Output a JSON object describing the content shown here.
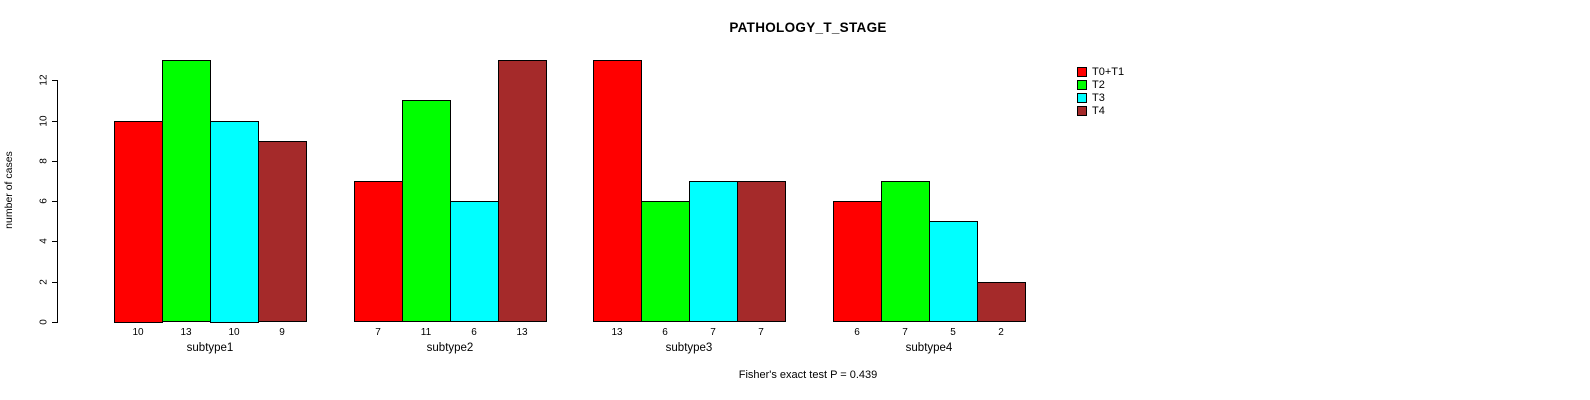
{
  "title": "PATHOLOGY_T_STAGE",
  "caption": "Fisher's exact test P = 0.439",
  "chart_data": {
    "type": "bar",
    "title": "PATHOLOGY_T_STAGE",
    "xlabel": "",
    "ylabel": "number of cases",
    "categories": [
      "subtype1",
      "subtype2",
      "subtype3",
      "subtype4"
    ],
    "series": [
      {
        "name": "T0+T1",
        "color": "#FF0000",
        "values": [
          10,
          7,
          13,
          6
        ]
      },
      {
        "name": "T2",
        "color": "#00FF00",
        "values": [
          13,
          11,
          6,
          7
        ]
      },
      {
        "name": "T3",
        "color": "#00FFFF",
        "values": [
          10,
          6,
          7,
          5
        ]
      },
      {
        "name": "T4",
        "color": "#A52A2A",
        "values": [
          9,
          13,
          7,
          2
        ]
      }
    ],
    "bar_value_labels": [
      [
        10,
        13,
        10,
        9
      ],
      [
        7,
        11,
        6,
        13
      ],
      [
        13,
        6,
        7,
        7
      ],
      [
        6,
        7,
        5,
        2
      ]
    ],
    "ylim": [
      0,
      12
    ],
    "yticks": [
      0,
      2,
      4,
      6,
      8,
      10,
      12
    ],
    "grid": false,
    "legend_position": "top-right",
    "annotation": "Fisher's exact test P = 0.439",
    "axis_color": "#000000",
    "bar_border_color": "#000000"
  }
}
